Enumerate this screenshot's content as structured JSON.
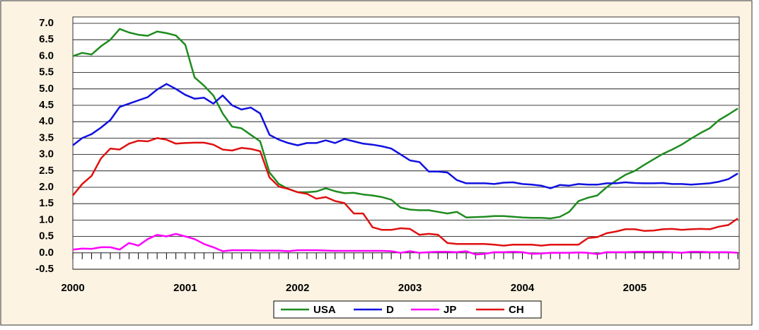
{
  "chart_data": {
    "type": "line",
    "categories": [
      "2000",
      null,
      null,
      null,
      null,
      null,
      null,
      null,
      null,
      null,
      null,
      null,
      "2001",
      null,
      null,
      null,
      null,
      null,
      null,
      null,
      null,
      null,
      null,
      null,
      "2002",
      null,
      null,
      null,
      null,
      null,
      null,
      null,
      null,
      null,
      null,
      null,
      "2003",
      null,
      null,
      null,
      null,
      null,
      null,
      null,
      null,
      null,
      null,
      null,
      "2004",
      null,
      null,
      null,
      null,
      null,
      null,
      null,
      null,
      null,
      null,
      null,
      "2005",
      null,
      null,
      null,
      null,
      null,
      null,
      null,
      null,
      null,
      null,
      null
    ],
    "series": [
      {
        "name": "USA",
        "color": "#1e8c1e",
        "values": [
          6.0,
          6.1,
          6.05,
          6.3,
          6.5,
          6.83,
          6.72,
          6.65,
          6.62,
          6.75,
          6.7,
          6.63,
          6.35,
          5.35,
          5.1,
          4.8,
          4.25,
          3.85,
          3.8,
          3.6,
          3.4,
          2.45,
          2.1,
          1.95,
          1.85,
          1.85,
          1.87,
          1.97,
          1.88,
          1.82,
          1.83,
          1.78,
          1.75,
          1.7,
          1.62,
          1.38,
          1.32,
          1.3,
          1.3,
          1.25,
          1.2,
          1.25,
          1.08,
          1.09,
          1.1,
          1.12,
          1.12,
          1.1,
          1.08,
          1.07,
          1.07,
          1.05,
          1.1,
          1.25,
          1.58,
          1.68,
          1.75,
          2.0,
          2.2,
          2.38,
          2.5,
          2.68,
          2.85,
          3.02,
          3.15,
          3.3,
          3.48,
          3.65,
          3.8,
          4.05,
          4.22,
          4.4
        ]
      },
      {
        "name": "D",
        "color": "#1010e0",
        "values": [
          3.28,
          3.5,
          3.62,
          3.82,
          4.05,
          4.45,
          4.55,
          4.65,
          4.75,
          4.98,
          5.15,
          5.0,
          4.82,
          4.7,
          4.73,
          4.55,
          4.8,
          4.5,
          4.37,
          4.43,
          4.25,
          3.6,
          3.45,
          3.35,
          3.28,
          3.35,
          3.35,
          3.43,
          3.35,
          3.47,
          3.4,
          3.33,
          3.3,
          3.25,
          3.18,
          3.0,
          2.82,
          2.77,
          2.48,
          2.48,
          2.45,
          2.22,
          2.12,
          2.12,
          2.12,
          2.1,
          2.14,
          2.15,
          2.1,
          2.08,
          2.05,
          1.97,
          2.07,
          2.05,
          2.1,
          2.08,
          2.08,
          2.12,
          2.12,
          2.15,
          2.13,
          2.12,
          2.12,
          2.13,
          2.1,
          2.1,
          2.08,
          2.1,
          2.12,
          2.17,
          2.25,
          2.42
        ]
      },
      {
        "name": "JP",
        "color": "#ff00ff",
        "values": [
          0.1,
          0.13,
          0.12,
          0.17,
          0.17,
          0.1,
          0.3,
          0.22,
          0.42,
          0.55,
          0.5,
          0.58,
          0.5,
          0.42,
          0.27,
          0.17,
          0.05,
          0.08,
          0.08,
          0.08,
          0.07,
          0.07,
          0.07,
          0.05,
          0.08,
          0.08,
          0.08,
          0.07,
          0.06,
          0.06,
          0.06,
          0.06,
          0.06,
          0.06,
          0.05,
          0.0,
          0.05,
          0.0,
          0.02,
          0.03,
          0.03,
          0.02,
          0.05,
          -0.05,
          -0.03,
          0.02,
          0.02,
          0.03,
          0.02,
          -0.03,
          -0.02,
          0.0,
          0.0,
          0.0,
          0.01,
          0.0,
          -0.04,
          0.02,
          0.02,
          0.02,
          0.03,
          0.03,
          0.03,
          0.03,
          0.02,
          0.0,
          0.03,
          0.03,
          0.02,
          0.02,
          0.02,
          0.0
        ]
      },
      {
        "name": "CH",
        "color": "#e01010",
        "values": [
          1.75,
          2.1,
          2.35,
          2.88,
          3.18,
          3.15,
          3.33,
          3.42,
          3.4,
          3.5,
          3.45,
          3.33,
          3.35,
          3.36,
          3.36,
          3.3,
          3.15,
          3.12,
          3.2,
          3.17,
          3.1,
          2.3,
          2.02,
          1.95,
          1.85,
          1.8,
          1.65,
          1.7,
          1.58,
          1.52,
          1.2,
          1.2,
          0.78,
          0.7,
          0.7,
          0.75,
          0.73,
          0.55,
          0.58,
          0.55,
          0.3,
          0.27,
          0.27,
          0.27,
          0.27,
          0.25,
          0.22,
          0.25,
          0.25,
          0.25,
          0.22,
          0.25,
          0.25,
          0.25,
          0.25,
          0.45,
          0.48,
          0.6,
          0.65,
          0.72,
          0.72,
          0.67,
          0.68,
          0.72,
          0.73,
          0.7,
          0.72,
          0.73,
          0.72,
          0.8,
          0.85,
          1.05
        ]
      }
    ],
    "ylim": [
      -0.5,
      7.0
    ],
    "yticks": [
      {
        "value": -0.5,
        "label": "-0.5"
      },
      {
        "value": 0,
        "label": "0.0"
      },
      {
        "value": 0.5,
        "label": "0.5"
      },
      {
        "value": 1,
        "label": "1.0"
      },
      {
        "value": 1.5,
        "label": "1.5"
      },
      {
        "value": 2,
        "label": "2.0"
      },
      {
        "value": 2.5,
        "label": "2.5"
      },
      {
        "value": 3,
        "label": "3.0"
      },
      {
        "value": 3.5,
        "label": "3.5"
      },
      {
        "value": 4,
        "label": "4.0"
      },
      {
        "value": 4.5,
        "label": "4.5"
      },
      {
        "value": 5,
        "label": "5.0"
      },
      {
        "value": 5.5,
        "label": "5.5"
      },
      {
        "value": 6,
        "label": "6.0"
      },
      {
        "value": 6.5,
        "label": "6.5"
      },
      {
        "value": 7,
        "label": "7.0"
      }
    ],
    "grid": true,
    "legend": "bottom"
  }
}
